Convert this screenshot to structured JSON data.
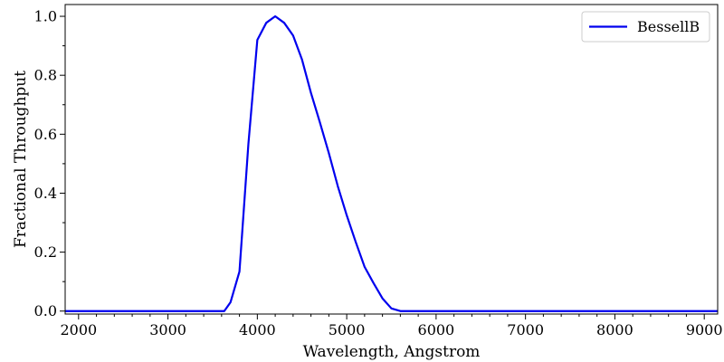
{
  "chart_data": {
    "type": "line",
    "title": "",
    "xlabel": "Wavelength, Angstrom",
    "ylabel": "Fractional Throughput",
    "xlim": [
      1850,
      9150
    ],
    "ylim": [
      -0.01,
      1.04
    ],
    "xticks": [
      2000,
      3000,
      4000,
      5000,
      6000,
      7000,
      8000,
      9000
    ],
    "yticks": [
      0.0,
      0.2,
      0.4,
      0.6,
      0.8,
      1.0
    ],
    "ytick_labels": [
      "0.0",
      "0.2",
      "0.4",
      "0.6",
      "0.8",
      "1.0"
    ],
    "grid": false,
    "legend_position": "top-right",
    "series": [
      {
        "name": "BessellB",
        "color": "#0000ee",
        "x": [
          1850,
          3600,
          3630,
          3700,
          3800,
          3900,
          4000,
          4100,
          4200,
          4300,
          4400,
          4500,
          4600,
          4700,
          4800,
          4900,
          5000,
          5100,
          5200,
          5300,
          5400,
          5500,
          5600,
          5700,
          9150
        ],
        "y": [
          0.0,
          0.0,
          0.0,
          0.03,
          0.134,
          0.567,
          0.92,
          0.978,
          1.0,
          0.978,
          0.935,
          0.853,
          0.74,
          0.64,
          0.536,
          0.424,
          0.325,
          0.235,
          0.15,
          0.095,
          0.043,
          0.009,
          0.0,
          0.0,
          0.0
        ]
      }
    ]
  }
}
